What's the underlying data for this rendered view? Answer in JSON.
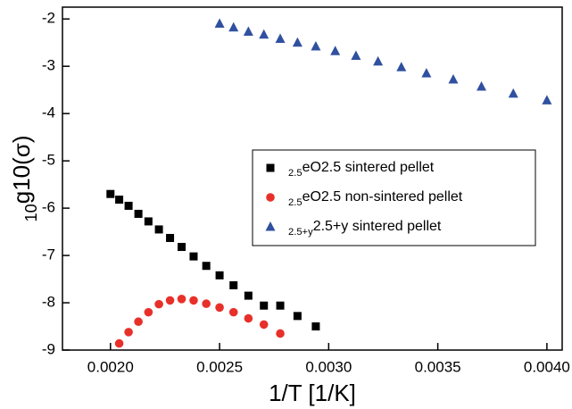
{
  "chart_data": {
    "type": "scatter",
    "x_label": "1/T [1/K]",
    "y_label": "log10(σ)",
    "xlim": [
      0.00178,
      0.00407
    ],
    "ylim": [
      -9,
      -1.75
    ],
    "xticks": [
      {
        "value": 0.002,
        "label": "0.0020"
      },
      {
        "value": 0.0025,
        "label": "0.0025"
      },
      {
        "value": 0.003,
        "label": "0.0030"
      },
      {
        "value": 0.0035,
        "label": "0.0035"
      },
      {
        "value": 0.004,
        "label": "0.0040"
      }
    ],
    "yticks": [
      -2,
      -3,
      -4,
      -5,
      -6,
      -7,
      -8,
      -9
    ],
    "legend": "right",
    "series": [
      {
        "name": "BaFeO2.5 sintered pellet",
        "color": "#000000",
        "marker": "square",
        "x": [
          0.002,
          0.00204,
          0.002083,
          0.002128,
          0.002174,
          0.002222,
          0.002273,
          0.002326,
          0.002381,
          0.002439,
          0.0025,
          0.002564,
          0.002632,
          0.002703,
          0.002778,
          0.002857,
          0.002941
        ],
        "values": [
          -5.7,
          -5.82,
          -5.95,
          -6.12,
          -6.28,
          -6.45,
          -6.63,
          -6.82,
          -7.02,
          -7.22,
          -7.42,
          -7.63,
          -7.85,
          -8.06,
          -8.06,
          -8.28,
          -8.5
        ]
      },
      {
        "name": "BaFeO2.5 non-sintered pellet",
        "color": "#e8302a",
        "marker": "circle",
        "x": [
          0.00204,
          0.002083,
          0.002128,
          0.002174,
          0.002222,
          0.002273,
          0.002326,
          0.002381,
          0.002439,
          0.0025,
          0.002564,
          0.002632,
          0.002703,
          0.002778
        ],
        "values": [
          -8.86,
          -8.62,
          -8.4,
          -8.2,
          -8.03,
          -7.95,
          -7.92,
          -7.95,
          -8.02,
          -8.1,
          -8.2,
          -8.33,
          -8.46,
          -8.65
        ]
      },
      {
        "name": "BaFeO2.5+y sintered pellet",
        "color": "#3050a0",
        "marker": "triangle",
        "x": [
          0.0025,
          0.002564,
          0.002632,
          0.002703,
          0.002778,
          0.002857,
          0.002941,
          0.00303,
          0.003125,
          0.003226,
          0.003333,
          0.003448,
          0.003571,
          0.0037,
          0.003846,
          0.004
        ],
        "values": [
          -2.1,
          -2.18,
          -2.27,
          -2.33,
          -2.42,
          -2.5,
          -2.58,
          -2.68,
          -2.78,
          -2.9,
          -3.02,
          -3.15,
          -3.28,
          -3.43,
          -3.58,
          -3.72
        ]
      }
    ]
  }
}
